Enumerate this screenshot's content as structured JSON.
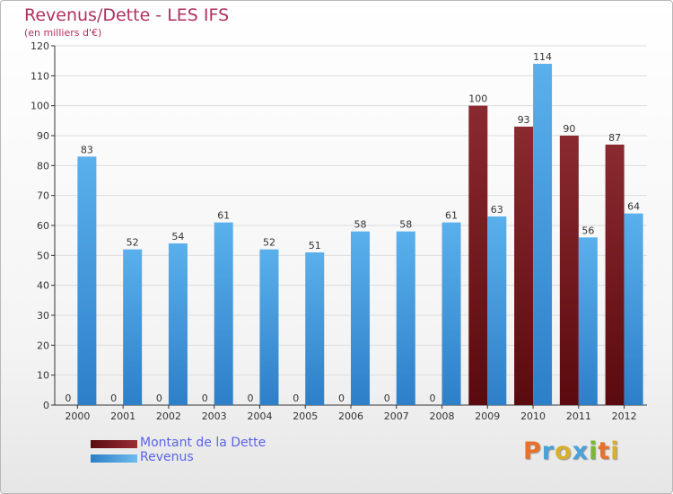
{
  "page": {
    "title": "Revenus/Dette - LES IFS",
    "subtitle": "(en milliers d'€)",
    "brand": "Proxiti"
  },
  "chart_data": {
    "type": "bar",
    "title": "Revenus/Dette - LES IFS",
    "subtitle": "(en milliers d'€)",
    "categories": [
      "2000",
      "2001",
      "2002",
      "2003",
      "2004",
      "2005",
      "2006",
      "2007",
      "2008",
      "2009",
      "2010",
      "2011",
      "2012"
    ],
    "series": [
      {
        "name": "Montant de la Dette",
        "color": "#7a1c22",
        "values": [
          0,
          0,
          0,
          0,
          0,
          0,
          0,
          0,
          0,
          100,
          93,
          90,
          87
        ]
      },
      {
        "name": "Revenus",
        "color": "#4ba3e3",
        "values": [
          83,
          52,
          54,
          61,
          52,
          51,
          58,
          58,
          61,
          63,
          114,
          56,
          64
        ]
      }
    ],
    "ylim": [
      0,
      120
    ],
    "yticks": [
      0,
      10,
      20,
      30,
      40,
      50,
      60,
      70,
      80,
      90,
      100,
      110,
      120
    ],
    "grid": true,
    "legend": "bottom-left",
    "data_labels": true
  },
  "colors": {
    "title": "#b03060",
    "legend_text": "#5a64e8",
    "axis": "#333333",
    "grid": "#dddddd"
  }
}
